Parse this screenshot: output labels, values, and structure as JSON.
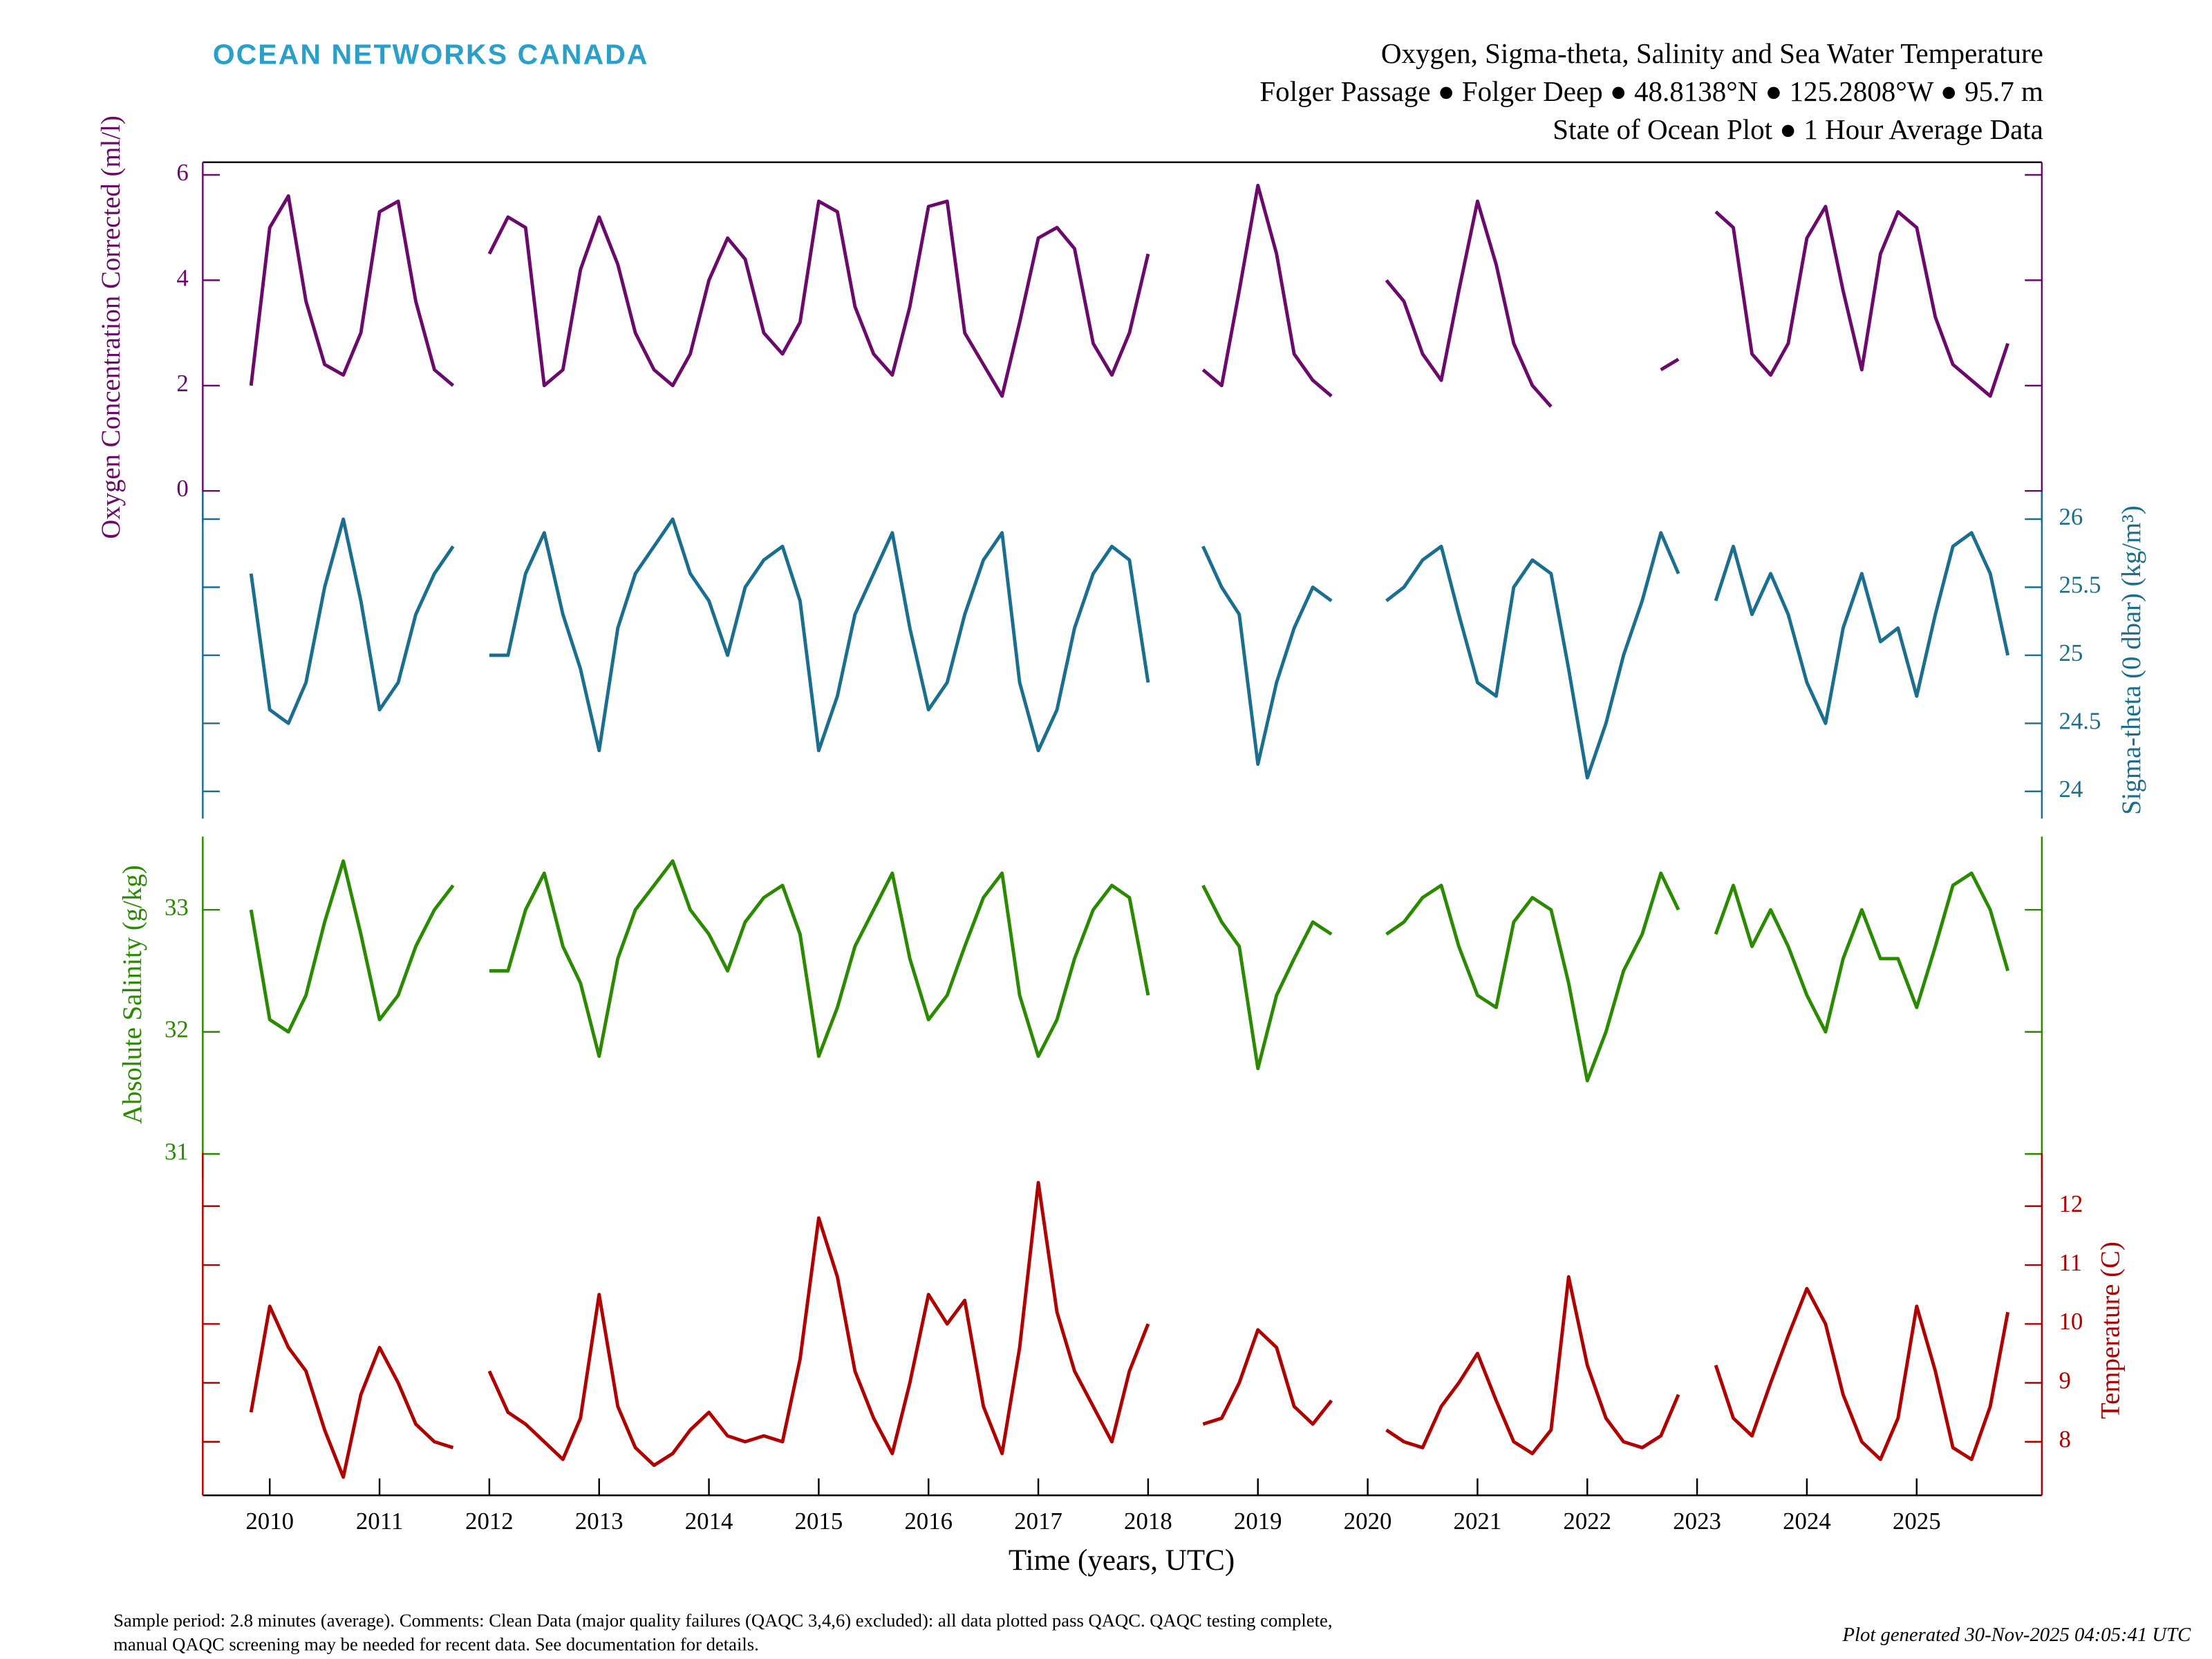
{
  "header": {
    "logo": "OCEAN NETWORKS CANADA"
  },
  "chart_data": {
    "type": "line",
    "title_lines": [
      "Oxygen, Sigma-theta, Salinity and Sea Water Temperature",
      "Folger Passage ● Folger Deep ● 48.8138°N ● 125.2808°W ● 95.7 m",
      "State of Ocean Plot ● 1 Hour Average Data"
    ],
    "xlabel": "Time (years, UTC)",
    "xlim": [
      2009.39,
      2026.14
    ],
    "xticks": [
      2010,
      2011,
      2012,
      2013,
      2014,
      2015,
      2016,
      2017,
      2018,
      2019,
      2020,
      2021,
      2022,
      2023,
      2024,
      2025
    ],
    "x": [
      2009.83,
      2010,
      2010.17,
      2010.33,
      2010.5,
      2010.67,
      2010.83,
      2011,
      2011.17,
      2011.33,
      2011.5,
      2011.67,
      2011.83,
      2012,
      2012.17,
      2012.33,
      2012.5,
      2012.67,
      2012.83,
      2013,
      2013.17,
      2013.33,
      2013.5,
      2013.67,
      2013.83,
      2014,
      2014.17,
      2014.33,
      2014.5,
      2014.67,
      2014.83,
      2015,
      2015.17,
      2015.33,
      2015.5,
      2015.67,
      2015.83,
      2016,
      2016.17,
      2016.33,
      2016.5,
      2016.67,
      2016.83,
      2017,
      2017.17,
      2017.33,
      2017.5,
      2017.67,
      2017.83,
      2018,
      2018.17,
      2018.33,
      2018.5,
      2018.67,
      2018.83,
      2019,
      2019.17,
      2019.33,
      2019.5,
      2019.67,
      2019.83,
      2020,
      2020.17,
      2020.33,
      2020.5,
      2020.67,
      2020.83,
      2021,
      2021.17,
      2021.33,
      2021.5,
      2021.67,
      2021.83,
      2022,
      2022.17,
      2022.33,
      2022.5,
      2022.67,
      2022.83,
      2023,
      2023.17,
      2023.33,
      2023.5,
      2023.67,
      2023.83,
      2024,
      2024.17,
      2024.33,
      2024.5,
      2024.67,
      2024.83,
      2025,
      2025.17,
      2025.33,
      2025.5,
      2025.67,
      2025.83
    ],
    "series": [
      {
        "name": "Oxygen Concentration Corrected (ml/l)",
        "color": "#6b0a6b",
        "axis": "left",
        "ylim": [
          -0.6,
          6.24
        ],
        "yticks": [
          0,
          2,
          4,
          6
        ],
        "values": [
          2.0,
          5.0,
          5.6,
          3.6,
          2.4,
          2.2,
          3.0,
          5.3,
          5.5,
          3.6,
          2.3,
          2.0,
          null,
          4.5,
          5.2,
          5.0,
          2.0,
          2.3,
          4.2,
          5.2,
          4.3,
          3.0,
          2.3,
          2.0,
          2.6,
          4.0,
          4.8,
          4.4,
          3.0,
          2.6,
          3.2,
          5.5,
          5.3,
          3.5,
          2.6,
          2.2,
          3.5,
          5.4,
          5.5,
          3.0,
          2.4,
          1.8,
          3.2,
          4.8,
          5.0,
          4.6,
          2.8,
          2.2,
          3.0,
          4.5,
          null,
          null,
          2.3,
          2.0,
          3.8,
          5.8,
          4.5,
          2.6,
          2.1,
          1.8,
          null,
          null,
          4.0,
          3.6,
          2.6,
          2.1,
          3.8,
          5.5,
          4.3,
          2.8,
          2.0,
          1.6,
          null,
          null,
          null,
          null,
          null,
          2.3,
          2.5,
          null,
          5.3,
          5.0,
          2.6,
          2.2,
          2.8,
          4.8,
          5.4,
          3.8,
          2.3,
          4.5,
          5.3,
          5.0,
          3.3,
          2.4,
          2.1,
          1.8,
          2.8
        ]
      },
      {
        "name": "Sigma-theta (0 dbar) (kg/m³)",
        "color": "#1a6f8f",
        "axis": "right",
        "ylim": [
          23.8,
          26.2
        ],
        "yticks": [
          24,
          24.5,
          25,
          25.5,
          26
        ],
        "values": [
          25.6,
          24.6,
          24.5,
          24.8,
          25.5,
          26.0,
          25.4,
          24.6,
          24.8,
          25.3,
          25.6,
          25.8,
          null,
          25.0,
          25.0,
          25.6,
          25.9,
          25.3,
          24.9,
          24.3,
          25.2,
          25.6,
          25.8,
          26.0,
          25.6,
          25.4,
          25.0,
          25.5,
          25.7,
          25.8,
          25.4,
          24.3,
          24.7,
          25.3,
          25.6,
          25.9,
          25.2,
          24.6,
          24.8,
          25.3,
          25.7,
          25.9,
          24.8,
          24.3,
          24.6,
          25.2,
          25.6,
          25.8,
          25.7,
          24.8,
          null,
          null,
          25.8,
          25.5,
          25.3,
          24.2,
          24.8,
          25.2,
          25.5,
          25.4,
          null,
          null,
          25.4,
          25.5,
          25.7,
          25.8,
          25.3,
          24.8,
          24.7,
          25.5,
          25.7,
          25.6,
          24.9,
          24.1,
          24.5,
          25.0,
          25.4,
          25.9,
          25.6,
          null,
          25.4,
          25.8,
          25.3,
          25.6,
          25.3,
          24.8,
          24.5,
          25.2,
          25.6,
          25.1,
          25.2,
          24.7,
          25.3,
          25.8,
          25.9,
          25.6,
          25.0
        ]
      },
      {
        "name": "Absolute Salinity (g/kg)",
        "color": "#2a8a00",
        "axis": "left",
        "ylim": [
          30.8,
          33.6
        ],
        "yticks": [
          31,
          32,
          33
        ],
        "values": [
          33.0,
          32.1,
          32.0,
          32.3,
          32.9,
          33.4,
          32.8,
          32.1,
          32.3,
          32.7,
          33.0,
          33.2,
          null,
          32.5,
          32.5,
          33.0,
          33.3,
          32.7,
          32.4,
          31.8,
          32.6,
          33.0,
          33.2,
          33.4,
          33.0,
          32.8,
          32.5,
          32.9,
          33.1,
          33.2,
          32.8,
          31.8,
          32.2,
          32.7,
          33.0,
          33.3,
          32.6,
          32.1,
          32.3,
          32.7,
          33.1,
          33.3,
          32.3,
          31.8,
          32.1,
          32.6,
          33.0,
          33.2,
          33.1,
          32.3,
          null,
          null,
          33.2,
          32.9,
          32.7,
          31.7,
          32.3,
          32.6,
          32.9,
          32.8,
          null,
          null,
          32.8,
          32.9,
          33.1,
          33.2,
          32.7,
          32.3,
          32.2,
          32.9,
          33.1,
          33.0,
          32.4,
          31.6,
          32.0,
          32.5,
          32.8,
          33.3,
          33.0,
          null,
          32.8,
          33.2,
          32.7,
          33.0,
          32.7,
          32.3,
          32.0,
          32.6,
          33.0,
          32.6,
          32.6,
          32.2,
          32.7,
          33.2,
          33.3,
          33.0,
          32.5
        ]
      },
      {
        "name": "Temperature (C)",
        "color": "#b00000",
        "axis": "right",
        "ylim": [
          7.09,
          12.9
        ],
        "yticks": [
          8,
          9,
          10,
          11,
          12
        ],
        "values": [
          8.5,
          10.3,
          9.6,
          9.2,
          8.2,
          7.4,
          8.8,
          9.6,
          9.0,
          8.3,
          8.0,
          7.9,
          null,
          9.2,
          8.5,
          8.3,
          8.0,
          7.7,
          8.4,
          10.5,
          8.6,
          7.9,
          7.6,
          7.8,
          8.2,
          8.5,
          8.1,
          8.0,
          8.1,
          8.0,
          9.4,
          11.8,
          10.8,
          9.2,
          8.4,
          7.8,
          9.0,
          10.5,
          10.0,
          10.4,
          8.6,
          7.8,
          9.6,
          12.4,
          10.2,
          9.2,
          8.6,
          8.0,
          9.2,
          10.0,
          null,
          null,
          8.3,
          8.4,
          9.0,
          9.9,
          9.6,
          8.6,
          8.3,
          8.7,
          null,
          null,
          8.2,
          8.0,
          7.9,
          8.6,
          9.0,
          9.5,
          8.7,
          8.0,
          7.8,
          8.2,
          10.8,
          9.3,
          8.4,
          8.0,
          7.9,
          8.1,
          8.8,
          null,
          9.3,
          8.4,
          8.1,
          9.0,
          9.8,
          10.6,
          10.0,
          8.8,
          8.0,
          7.7,
          8.4,
          10.3,
          9.2,
          7.9,
          7.7,
          8.6,
          10.2
        ]
      }
    ]
  },
  "footer": {
    "notes": [
      "Sample period: 2.8 minutes (average). Comments: Clean Data (major quality failures (QAQC 3,4,6) excluded): all data plotted pass QAQC. QAQC testing complete,",
      "manual QAQC screening may be needed for recent data. See documentation for details."
    ],
    "generated": "Plot generated 30-Nov-2025 04:05:41 UTC"
  }
}
